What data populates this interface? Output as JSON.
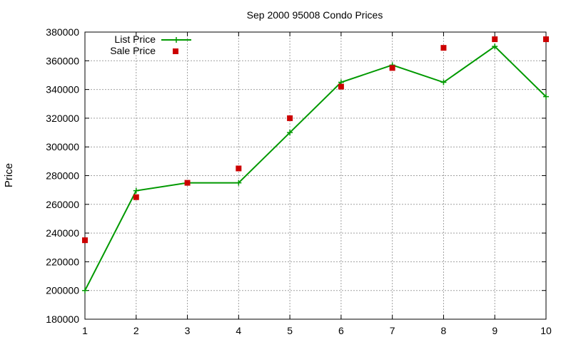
{
  "chart_data": {
    "type": "line",
    "title": "Sep 2000 95008 Condo Prices",
    "xlabel": "",
    "ylabel": "Price",
    "x": [
      1,
      2,
      3,
      4,
      5,
      6,
      7,
      8,
      9,
      10
    ],
    "xlim": [
      1,
      10
    ],
    "ylim": [
      180000,
      380000
    ],
    "xticks": [
      "1",
      "2",
      "3",
      "4",
      "5",
      "6",
      "7",
      "8",
      "9",
      "10"
    ],
    "yticks": [
      "180000",
      "200000",
      "220000",
      "240000",
      "260000",
      "280000",
      "300000",
      "320000",
      "340000",
      "360000",
      "380000"
    ],
    "grid": true,
    "legend_position": "top-left",
    "series": [
      {
        "name": "List Price",
        "style": "linespoints",
        "marker": "plus",
        "color": "#009900",
        "values": [
          200000,
          269500,
          275000,
          275000,
          310000,
          345000,
          357000,
          345000,
          370000,
          335000
        ]
      },
      {
        "name": "Sale Price",
        "style": "points",
        "marker": "square",
        "color": "#cc0000",
        "values": [
          235000,
          265000,
          275000,
          285000,
          320000,
          342000,
          355000,
          369000,
          375000,
          375000
        ]
      }
    ]
  }
}
